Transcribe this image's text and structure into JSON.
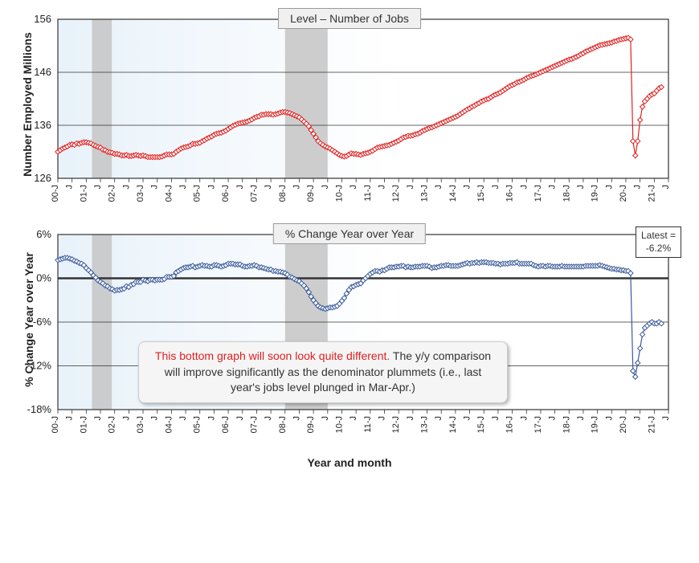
{
  "xaxis": {
    "ticks": [
      "00-J",
      "J",
      "01-J",
      "J",
      "02-J",
      "J",
      "03-J",
      "J",
      "04-J",
      "J",
      "05-J",
      "J",
      "06-J",
      "J",
      "07-J",
      "J",
      "08-J",
      "J",
      "09-J",
      "J",
      "10-J",
      "J",
      "11-J",
      "J",
      "12-J",
      "J",
      "13-J",
      "J",
      "14-J",
      "J",
      "15-J",
      "J",
      "16-J",
      "J",
      "17-J",
      "J",
      "18-J",
      "J",
      "19-J",
      "J",
      "20-J",
      "J",
      "21-J",
      "J"
    ],
    "label": "Year and month"
  },
  "chart1": {
    "title": "Level – Number of Jobs",
    "type": "line",
    "ylabel": "Number Employed Millions",
    "ylim": [
      126,
      156
    ],
    "yticks": [
      126,
      136,
      146,
      156
    ],
    "series_color": "#e02020",
    "marker": "diamond",
    "marker_size": 5,
    "line_width": 1.2,
    "background_gradient": [
      "#e8f2fa",
      "#ffffff"
    ],
    "grid_color": "#333333",
    "recession_bands": [
      [
        1.2,
        1.9
      ],
      [
        8.0,
        9.5
      ]
    ],
    "recession_color": "#c8c8c8",
    "data": [
      131.0,
      131.3,
      131.6,
      131.8,
      132.0,
      132.3,
      132.4,
      132.3,
      132.6,
      132.5,
      132.7,
      132.8,
      132.8,
      132.7,
      132.6,
      132.3,
      132.1,
      131.9,
      131.8,
      131.4,
      131.3,
      131.0,
      130.9,
      130.8,
      130.6,
      130.6,
      130.5,
      130.3,
      130.3,
      130.4,
      130.2,
      130.2,
      130.3,
      130.4,
      130.3,
      130.2,
      130.3,
      130.2,
      130.0,
      130.0,
      130.0,
      130.0,
      130.0,
      130.0,
      130.1,
      130.3,
      130.5,
      130.5,
      130.5,
      130.6,
      131.0,
      131.3,
      131.6,
      131.8,
      131.9,
      132.0,
      132.2,
      132.5,
      132.5,
      132.6,
      132.7,
      133.0,
      133.2,
      133.5,
      133.7,
      133.9,
      134.2,
      134.4,
      134.5,
      134.6,
      134.8,
      135.0,
      135.3,
      135.6,
      135.9,
      136.1,
      136.3,
      136.4,
      136.5,
      136.6,
      136.7,
      136.9,
      137.1,
      137.4,
      137.6,
      137.7,
      138.0,
      138.0,
      138.1,
      138.1,
      138.1,
      138.0,
      138.1,
      138.2,
      138.4,
      138.5,
      138.5,
      138.4,
      138.3,
      138.1,
      137.9,
      137.7,
      137.5,
      137.1,
      136.7,
      136.3,
      135.8,
      135.1,
      134.4,
      133.7,
      133.0,
      132.6,
      132.3,
      132.0,
      131.8,
      131.6,
      131.3,
      131.0,
      130.7,
      130.4,
      130.2,
      130.1,
      130.2,
      130.5,
      130.7,
      130.6,
      130.6,
      130.5,
      130.4,
      130.6,
      130.7,
      130.8,
      131.0,
      131.2,
      131.5,
      131.8,
      131.9,
      132.0,
      132.1,
      132.2,
      132.3,
      132.5,
      132.7,
      132.9,
      133.1,
      133.4,
      133.7,
      133.8,
      134.0,
      134.0,
      134.1,
      134.3,
      134.4,
      134.6,
      134.9,
      135.1,
      135.3,
      135.5,
      135.6,
      135.8,
      136.0,
      136.2,
      136.4,
      136.6,
      136.8,
      137.0,
      137.2,
      137.4,
      137.6,
      137.8,
      138.1,
      138.4,
      138.7,
      139.0,
      139.2,
      139.5,
      139.7,
      140.0,
      140.2,
      140.5,
      140.7,
      140.9,
      141.0,
      141.3,
      141.6,
      141.8,
      142.0,
      142.2,
      142.5,
      142.8,
      143.1,
      143.4,
      143.6,
      143.8,
      144.1,
      144.2,
      144.4,
      144.6,
      144.9,
      145.1,
      145.3,
      145.4,
      145.6,
      145.8,
      146.0,
      146.2,
      146.4,
      146.6,
      146.8,
      147.0,
      147.2,
      147.4,
      147.6,
      147.8,
      148.0,
      148.2,
      148.4,
      148.5,
      148.7,
      148.9,
      149.1,
      149.4,
      149.6,
      149.9,
      150.1,
      150.3,
      150.5,
      150.7,
      150.9,
      151.1,
      151.2,
      151.3,
      151.4,
      151.5,
      151.6,
      151.8,
      151.9,
      152.1,
      152.2,
      152.3,
      152.4,
      152.5,
      152.2,
      133.0,
      130.3,
      133.0,
      137.0,
      139.5,
      140.5,
      141.0,
      141.5,
      141.8,
      142.0,
      142.5,
      143.0,
      143.2
    ]
  },
  "chart2": {
    "title": "% Change Year over Year",
    "type": "line",
    "ylabel": "% Change Year over Year",
    "ylim": [
      -18,
      6
    ],
    "yticks": [
      -18,
      -12,
      -6,
      0,
      6
    ],
    "ytick_labels": [
      "-18%",
      "-12%",
      "-6%",
      "0%",
      "6%"
    ],
    "series_color": "#3a5a9a",
    "marker": "diamond",
    "marker_size": 5,
    "line_width": 1.2,
    "zero_line_width": 2.5,
    "background_gradient": [
      "#e8f2fa",
      "#ffffff"
    ],
    "grid_color": "#333333",
    "recession_bands": [
      [
        1.2,
        1.9
      ],
      [
        8.0,
        9.5
      ]
    ],
    "recession_color": "#c8c8c8",
    "latest_label": "Latest =",
    "latest_value": "-6.2%",
    "note_red": "This bottom graph will soon look quite different.",
    "note_rest": " The y/y comparison will improve significantly as the denominator plummets (i.e., last year's jobs level plunged in Mar-Apr.)",
    "data": [
      2.5,
      2.6,
      2.7,
      2.8,
      2.8,
      2.7,
      2.6,
      2.4,
      2.3,
      2.1,
      2.0,
      1.8,
      1.4,
      1.1,
      0.8,
      0.4,
      0.1,
      -0.3,
      -0.5,
      -0.7,
      -1.0,
      -1.1,
      -1.4,
      -1.5,
      -1.7,
      -1.6,
      -1.6,
      -1.5,
      -1.4,
      -1.1,
      -1.2,
      -0.9,
      -0.8,
      -0.5,
      -0.5,
      -0.5,
      -0.2,
      -0.3,
      -0.4,
      -0.2,
      -0.2,
      -0.3,
      -0.2,
      -0.2,
      -0.2,
      -0.1,
      0.2,
      0.2,
      0.2,
      0.3,
      0.8,
      1.0,
      1.2,
      1.4,
      1.5,
      1.5,
      1.6,
      1.7,
      1.5,
      1.6,
      1.7,
      1.8,
      1.7,
      1.7,
      1.6,
      1.6,
      1.8,
      1.8,
      1.7,
      1.6,
      1.7,
      1.8,
      2.0,
      2.0,
      2.0,
      1.9,
      1.9,
      1.9,
      1.7,
      1.6,
      1.6,
      1.7,
      1.7,
      1.8,
      1.7,
      1.5,
      1.5,
      1.4,
      1.3,
      1.2,
      1.2,
      1.0,
      1.0,
      0.9,
      0.9,
      0.8,
      0.7,
      0.5,
      0.2,
      0.1,
      -0.1,
      -0.3,
      -0.4,
      -0.7,
      -1.0,
      -1.4,
      -1.9,
      -2.5,
      -3.0,
      -3.4,
      -3.8,
      -4.0,
      -4.1,
      -4.2,
      -4.1,
      -4.0,
      -4.0,
      -3.9,
      -3.8,
      -3.5,
      -3.1,
      -2.7,
      -2.1,
      -1.6,
      -1.2,
      -1.1,
      -0.9,
      -0.8,
      -0.7,
      -0.3,
      0.0,
      0.3,
      0.6,
      0.8,
      1.0,
      1.0,
      0.9,
      1.1,
      1.1,
      1.3,
      1.5,
      1.5,
      1.5,
      1.6,
      1.6,
      1.7,
      1.7,
      1.5,
      1.6,
      1.5,
      1.5,
      1.6,
      1.6,
      1.6,
      1.7,
      1.7,
      1.7,
      1.6,
      1.4,
      1.5,
      1.5,
      1.6,
      1.7,
      1.7,
      1.8,
      1.8,
      1.7,
      1.7,
      1.7,
      1.7,
      1.8,
      1.9,
      2.0,
      2.1,
      2.0,
      2.1,
      2.1,
      2.2,
      2.1,
      2.2,
      2.2,
      2.2,
      2.1,
      2.1,
      2.1,
      2.0,
      2.0,
      1.9,
      2.0,
      2.0,
      2.0,
      2.1,
      2.1,
      2.1,
      2.2,
      2.0,
      2.0,
      2.0,
      2.0,
      2.0,
      2.0,
      1.8,
      1.7,
      1.6,
      1.7,
      1.7,
      1.6,
      1.7,
      1.7,
      1.6,
      1.6,
      1.6,
      1.6,
      1.7,
      1.6,
      1.6,
      1.6,
      1.6,
      1.6,
      1.6,
      1.6,
      1.6,
      1.6,
      1.7,
      1.7,
      1.7,
      1.7,
      1.7,
      1.7,
      1.8,
      1.7,
      1.6,
      1.5,
      1.4,
      1.3,
      1.3,
      1.2,
      1.2,
      1.1,
      1.1,
      1.0,
      1.0,
      0.7,
      -12.7,
      -13.5,
      -11.6,
      -9.6,
      -7.7,
      -6.8,
      -6.5,
      -6.2,
      -6.0,
      -6.2,
      -6.2,
      -6.0,
      -6.2
    ]
  }
}
